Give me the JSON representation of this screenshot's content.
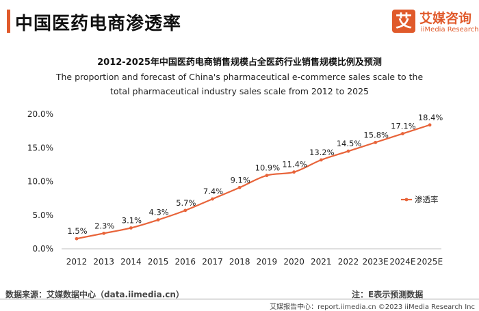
{
  "header": {
    "title": "中国医药电商渗透率",
    "logo_mark": "艾",
    "logo_name": "艾媒咨询",
    "logo_sub": "iiMedia Research"
  },
  "chart_data": {
    "type": "line",
    "title": "2012-2025年中国医药电商销售规模占全医药行业销售规模比例及预测",
    "subtitle": "The proportion and forecast of China's pharmaceutical e-commerce sales scale to the total pharmaceutical industry sales scale from 2012 to 2025",
    "categories": [
      "2012",
      "2013",
      "2014",
      "2015",
      "2016",
      "2017",
      "2018",
      "2019",
      "2020",
      "2021",
      "2022",
      "2023E",
      "2024E",
      "2025E"
    ],
    "series": [
      {
        "name": "渗透率",
        "values": [
          1.5,
          2.3,
          3.1,
          4.3,
          5.7,
          7.4,
          9.1,
          10.9,
          11.4,
          13.2,
          14.5,
          15.8,
          17.1,
          18.4
        ],
        "labels": [
          "1.5%",
          "2.3%",
          "3.1%",
          "4.3%",
          "5.7%",
          "7.4%",
          "9.1%",
          "10.9%",
          "11.4%",
          "13.2%",
          "14.5%",
          "15.8%",
          "17.1%",
          "18.4%"
        ],
        "color": "#e8643a"
      }
    ],
    "yticks": [
      "0.0%",
      "5.0%",
      "10.0%",
      "15.0%",
      "20.0%"
    ],
    "ylim": [
      0,
      20
    ],
    "legend_position": "right",
    "grid": false
  },
  "footer": {
    "source": "数据来源：艾媒数据中心（data.iimedia.cn）",
    "note": "注：E表示预测数据",
    "copyright": "艾媒报告中心：report.iimedia.cn   ©2023   iiMedia Research  Inc"
  }
}
